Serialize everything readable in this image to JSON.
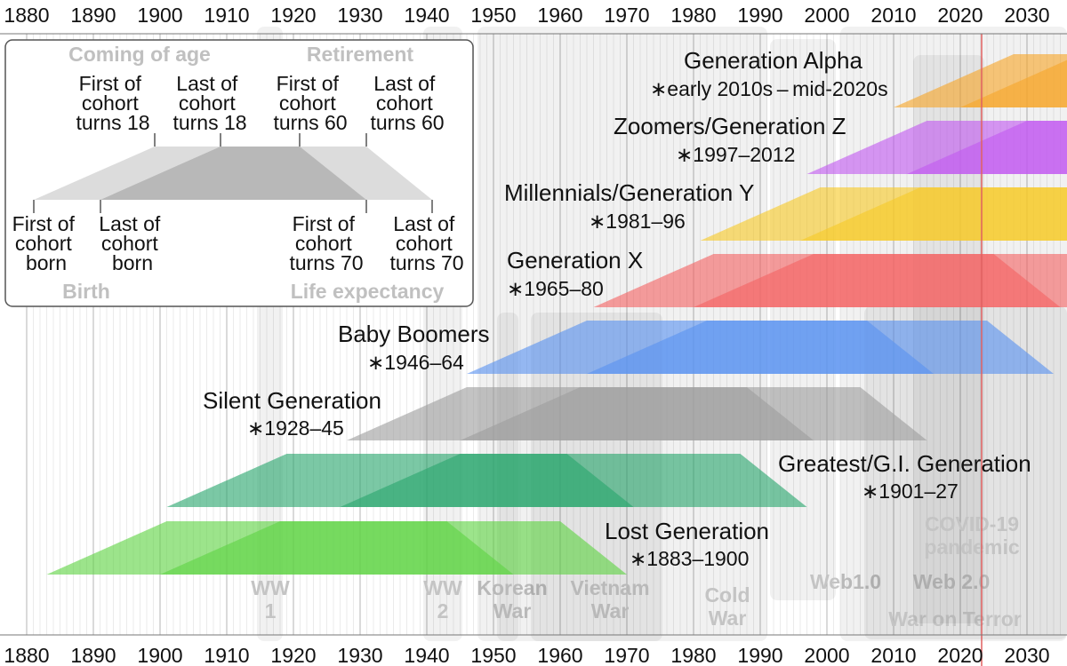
{
  "axis": {
    "years": [
      "1880",
      "1890",
      "1900",
      "1910",
      "1920",
      "1930",
      "1940",
      "1950",
      "1960",
      "1970",
      "1980",
      "1990",
      "2000",
      "2010",
      "2020",
      "2030"
    ]
  },
  "events": [
    {
      "lines": [
        "WW",
        "1"
      ]
    },
    {
      "lines": [
        "WW",
        "2"
      ]
    },
    {
      "lines": [
        "Korean",
        "War"
      ]
    },
    {
      "lines": [
        "Vietnam",
        "War"
      ]
    },
    {
      "lines": [
        "Cold",
        "War"
      ]
    },
    {
      "lines": [
        "Web1.0"
      ]
    },
    {
      "lines": [
        "Web 2.0"
      ]
    },
    {
      "lines": [
        "War on Terror"
      ]
    },
    {
      "lines": [
        "COVID-19",
        "pandemic"
      ]
    }
  ],
  "generations": [
    {
      "name": "Lost Generation",
      "years": "∗1883–1900",
      "color": "#5fd443"
    },
    {
      "name": "Greatest/G.I. Generation",
      "years": "∗1901–27",
      "color": "#2aa66e"
    },
    {
      "name": "Silent Generation",
      "years": "∗1928–45",
      "color": "#9e9e9e"
    },
    {
      "name": "Baby Boomers",
      "years": "∗1946–64",
      "color": "#5b93f0"
    },
    {
      "name": "Generation X",
      "years": "∗1965–80",
      "color": "#f46464"
    },
    {
      "name": "Millennials/Generation Y",
      "years": "∗1981–96",
      "color": "#f7c928"
    },
    {
      "name": "Zoomers/Generation Z",
      "years": "∗1997–2012",
      "color": "#c25bf0"
    },
    {
      "name": "Generation Alpha",
      "years": "∗early 2010s – mid-2020s",
      "color": "#f7a72a"
    }
  ],
  "legend": {
    "coming_of_age": "Coming of age",
    "retirement": "Retirement",
    "birth": "Birth",
    "life_expectancy": "Life expectancy",
    "top_labels": [
      [
        "First of",
        "cohort",
        "turns 18"
      ],
      [
        "Last of",
        "cohort",
        "turns 18"
      ],
      [
        "First of",
        "cohort",
        "turns 60"
      ],
      [
        "Last of",
        "cohort",
        "turns 60"
      ]
    ],
    "bottom_labels": [
      [
        "First of",
        "cohort",
        "born"
      ],
      [
        "Last of",
        "cohort",
        "born"
      ],
      [
        "First of",
        "cohort",
        "turns 70"
      ],
      [
        "Last of",
        "cohort",
        "turns 70"
      ]
    ]
  },
  "current_year_marker_color": "#e06060"
}
